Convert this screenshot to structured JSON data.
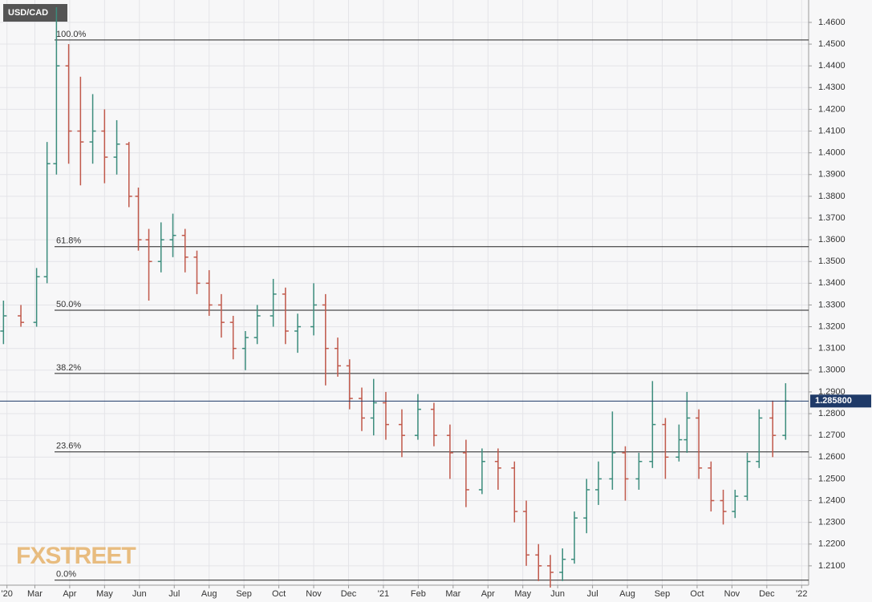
{
  "chart_data": {
    "type": "ohlc",
    "title": "USD/CAD",
    "watermark": "FXSTREET",
    "up_color": "#3b8c7c",
    "down_color": "#c0584a",
    "grid": true,
    "xlim": [
      1.0,
      24.2
    ],
    "ylim": [
      1.2011,
      1.4703
    ],
    "xticks": [
      {
        "value": 1.2,
        "label": "'20"
      },
      {
        "value": 2,
        "label": "Mar"
      },
      {
        "value": 3,
        "label": "Apr"
      },
      {
        "value": 4,
        "label": "May"
      },
      {
        "value": 5,
        "label": "Jun"
      },
      {
        "value": 6,
        "label": "Jul"
      },
      {
        "value": 7,
        "label": "Aug"
      },
      {
        "value": 8,
        "label": "Sep"
      },
      {
        "value": 9,
        "label": "Oct"
      },
      {
        "value": 10,
        "label": "Nov"
      },
      {
        "value": 11,
        "label": "Dec"
      },
      {
        "value": 12,
        "label": "'21"
      },
      {
        "value": 13,
        "label": "Feb"
      },
      {
        "value": 14,
        "label": "Mar"
      },
      {
        "value": 15,
        "label": "Apr"
      },
      {
        "value": 16,
        "label": "May"
      },
      {
        "value": 17,
        "label": "Jun"
      },
      {
        "value": 18,
        "label": "Jul"
      },
      {
        "value": 19,
        "label": "Aug"
      },
      {
        "value": 20,
        "label": "Sep"
      },
      {
        "value": 21,
        "label": "Oct"
      },
      {
        "value": 22,
        "label": "Nov"
      },
      {
        "value": 23,
        "label": "Dec"
      },
      {
        "value": 24,
        "label": "'22"
      }
    ],
    "yticks": [
      {
        "value": 1.21,
        "label": "1.2100"
      },
      {
        "value": 1.22,
        "label": "1.2200"
      },
      {
        "value": 1.23,
        "label": "1.2300"
      },
      {
        "value": 1.24,
        "label": "1.2400"
      },
      {
        "value": 1.25,
        "label": "1.2500"
      },
      {
        "value": 1.26,
        "label": "1.2600"
      },
      {
        "value": 1.27,
        "label": "1.2700"
      },
      {
        "value": 1.28,
        "label": "1.2800"
      },
      {
        "value": 1.29,
        "label": "1.2900"
      },
      {
        "value": 1.3,
        "label": "1.3000"
      },
      {
        "value": 1.31,
        "label": "1.3100"
      },
      {
        "value": 1.32,
        "label": "1.3200"
      },
      {
        "value": 1.33,
        "label": "1.3300"
      },
      {
        "value": 1.34,
        "label": "1.3400"
      },
      {
        "value": 1.35,
        "label": "1.3500"
      },
      {
        "value": 1.36,
        "label": "1.3600"
      },
      {
        "value": 1.37,
        "label": "1.3700"
      },
      {
        "value": 1.38,
        "label": "1.3800"
      },
      {
        "value": 1.39,
        "label": "1.3900"
      },
      {
        "value": 1.4,
        "label": "1.4000"
      },
      {
        "value": 1.41,
        "label": "1.4100"
      },
      {
        "value": 1.42,
        "label": "1.4200"
      },
      {
        "value": 1.43,
        "label": "1.4300"
      },
      {
        "value": 1.44,
        "label": "1.4400"
      },
      {
        "value": 1.45,
        "label": "1.4500"
      },
      {
        "value": 1.46,
        "label": "1.4600"
      }
    ],
    "fib_levels": [
      {
        "value": 1.4519,
        "label": "100.0%"
      },
      {
        "value": 1.3568,
        "label": "61.8%"
      },
      {
        "value": 1.3276,
        "label": "50.0%"
      },
      {
        "value": 1.2985,
        "label": "38.2%"
      },
      {
        "value": 1.2624,
        "label": "23.6%"
      },
      {
        "value": 1.2034,
        "label": "0.0%"
      }
    ],
    "last_price": {
      "value": 1.2858,
      "label": "1.285800"
    },
    "x": [
      1.1,
      1.6,
      2.05,
      2.35,
      2.62,
      2.97,
      3.31,
      3.66,
      4.0,
      4.35,
      4.7,
      4.97,
      5.27,
      5.62,
      5.96,
      6.31,
      6.65,
      7.0,
      7.35,
      7.69,
      8.04,
      8.38,
      8.84,
      9.19,
      9.54,
      10.0,
      10.34,
      10.69,
      11.03,
      11.38,
      11.72,
      12.07,
      12.53,
      12.99,
      13.45,
      13.91,
      14.37,
      14.83,
      15.29,
      15.76,
      16.1,
      16.45,
      16.79,
      17.14,
      17.48,
      17.83,
      18.17,
      18.57,
      18.94,
      19.33,
      19.72,
      20.09,
      20.48,
      20.71,
      21.05,
      21.4,
      21.75,
      22.09,
      22.44,
      22.78,
      23.17,
      23.54
    ],
    "open": [
      1.318,
      1.325,
      1.322,
      1.343,
      1.395,
      1.44,
      1.41,
      1.405,
      1.41,
      1.398,
      1.404,
      1.38,
      1.36,
      1.35,
      1.36,
      1.362,
      1.352,
      1.34,
      1.33,
      1.322,
      1.31,
      1.315,
      1.325,
      1.335,
      1.318,
      1.32,
      1.33,
      1.31,
      1.302,
      1.287,
      1.278,
      1.285,
      1.275,
      1.27,
      1.282,
      1.27,
      1.262,
      1.245,
      1.258,
      1.255,
      1.235,
      1.215,
      1.21,
      1.207,
      1.213,
      1.232,
      1.245,
      1.25,
      1.262,
      1.25,
      1.258,
      1.275,
      1.26,
      1.268,
      1.278,
      1.255,
      1.24,
      1.235,
      1.242,
      1.258,
      1.278,
      1.27
    ],
    "high": [
      1.332,
      1.33,
      1.347,
      1.405,
      1.467,
      1.45,
      1.435,
      1.427,
      1.42,
      1.415,
      1.405,
      1.384,
      1.365,
      1.368,
      1.372,
      1.365,
      1.355,
      1.346,
      1.335,
      1.325,
      1.318,
      1.33,
      1.342,
      1.338,
      1.326,
      1.34,
      1.335,
      1.315,
      1.305,
      1.292,
      1.296,
      1.29,
      1.282,
      1.289,
      1.285,
      1.275,
      1.268,
      1.264,
      1.264,
      1.258,
      1.24,
      1.22,
      1.215,
      1.218,
      1.235,
      1.25,
      1.258,
      1.281,
      1.265,
      1.262,
      1.295,
      1.278,
      1.275,
      1.29,
      1.282,
      1.258,
      1.245,
      1.245,
      1.262,
      1.282,
      1.286,
      1.294
    ],
    "low": [
      1.312,
      1.32,
      1.32,
      1.34,
      1.39,
      1.395,
      1.385,
      1.395,
      1.386,
      1.39,
      1.375,
      1.355,
      1.332,
      1.345,
      1.352,
      1.345,
      1.335,
      1.325,
      1.315,
      1.305,
      1.3,
      1.312,
      1.32,
      1.312,
      1.308,
      1.316,
      1.293,
      1.297,
      1.282,
      1.272,
      1.27,
      1.268,
      1.26,
      1.268,
      1.265,
      1.25,
      1.237,
      1.243,
      1.245,
      1.23,
      1.21,
      1.203,
      1.2,
      1.203,
      1.211,
      1.225,
      1.238,
      1.245,
      1.24,
      1.245,
      1.255,
      1.25,
      1.258,
      1.262,
      1.25,
      1.235,
      1.229,
      1.232,
      1.24,
      1.255,
      1.26,
      1.268
    ],
    "close": [
      1.325,
      1.322,
      1.343,
      1.395,
      1.44,
      1.41,
      1.405,
      1.41,
      1.398,
      1.404,
      1.38,
      1.36,
      1.35,
      1.36,
      1.362,
      1.352,
      1.34,
      1.33,
      1.322,
      1.31,
      1.315,
      1.325,
      1.335,
      1.318,
      1.32,
      1.33,
      1.31,
      1.302,
      1.287,
      1.278,
      1.285,
      1.275,
      1.27,
      1.282,
      1.27,
      1.262,
      1.245,
      1.258,
      1.255,
      1.235,
      1.215,
      1.21,
      1.207,
      1.213,
      1.232,
      1.245,
      1.25,
      1.262,
      1.25,
      1.258,
      1.275,
      1.26,
      1.268,
      1.278,
      1.255,
      1.24,
      1.235,
      1.242,
      1.258,
      1.278,
      1.27,
      1.2858
    ]
  }
}
